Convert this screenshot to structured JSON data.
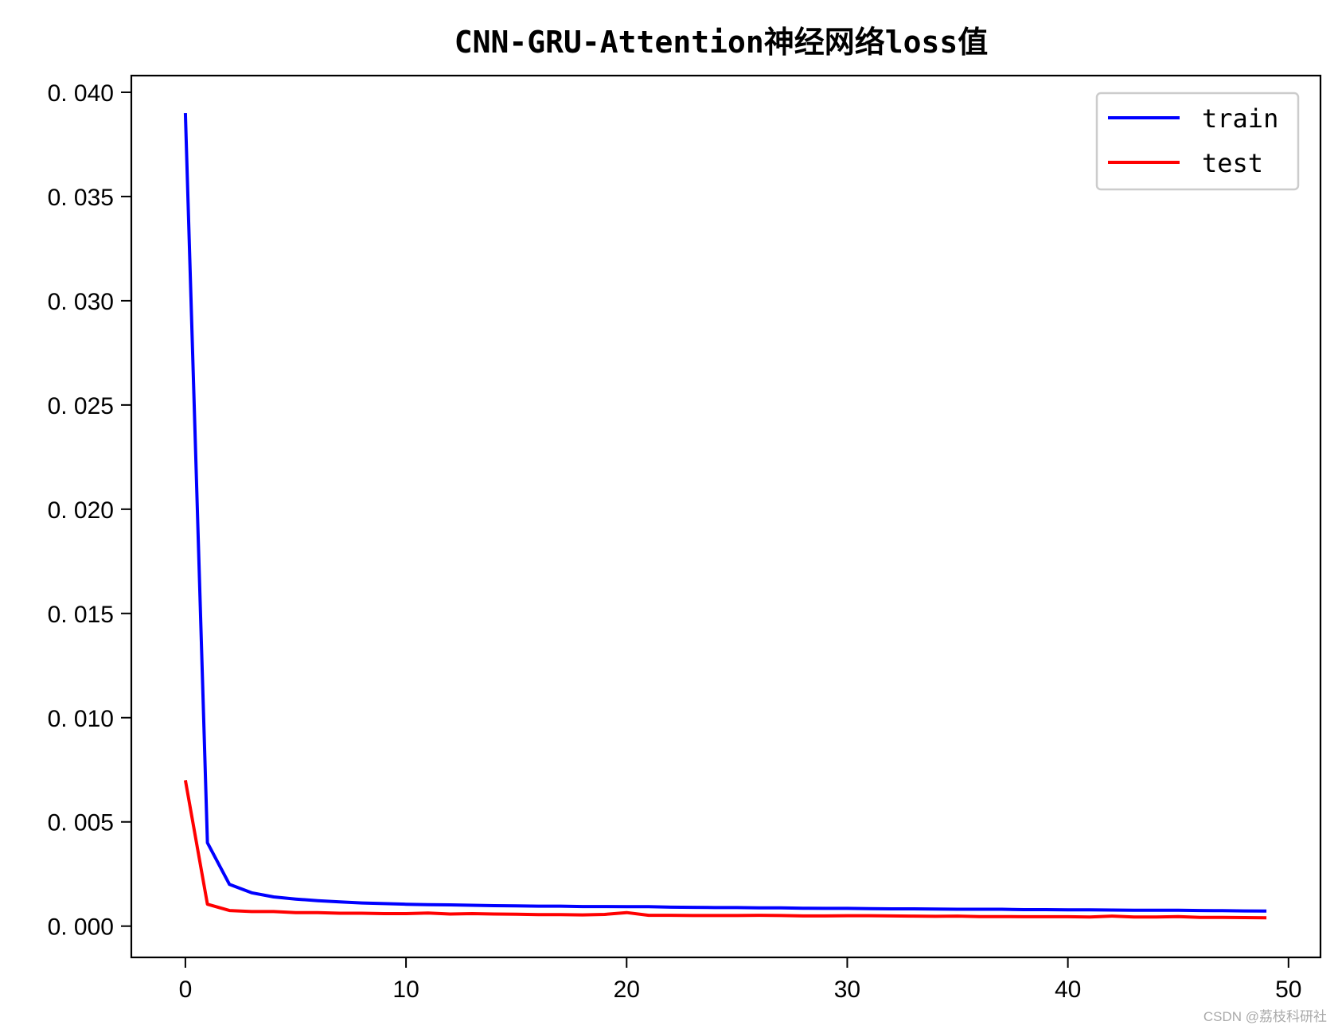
{
  "chart_data": {
    "type": "line",
    "title": "CNN-GRU-Attention神经网络loss值",
    "xlabel": "",
    "ylabel": "",
    "xlim": [
      -2.45,
      51.45
    ],
    "ylim": [
      -0.0015,
      0.0408
    ],
    "xticks": [
      0,
      10,
      20,
      30,
      40,
      50
    ],
    "yticks": [
      0.0,
      0.005,
      0.01,
      0.015,
      0.02,
      0.025,
      0.03,
      0.035,
      0.04
    ],
    "ytick_labels": [
      "0.000",
      "0.005",
      "0.010",
      "0.015",
      "0.020",
      "0.025",
      "0.030",
      "0.035",
      "0.040"
    ],
    "grid": false,
    "legend_position": "top-right",
    "x": [
      0,
      1,
      2,
      3,
      4,
      5,
      6,
      7,
      8,
      9,
      10,
      11,
      12,
      13,
      14,
      15,
      16,
      17,
      18,
      19,
      20,
      21,
      22,
      23,
      24,
      25,
      26,
      27,
      28,
      29,
      30,
      31,
      32,
      33,
      34,
      35,
      36,
      37,
      38,
      39,
      40,
      41,
      42,
      43,
      44,
      45,
      46,
      47,
      48,
      49
    ],
    "series": [
      {
        "name": "train",
        "color": "#0000ff",
        "values": [
          0.039,
          0.004,
          0.002,
          0.0016,
          0.0014,
          0.0013,
          0.00122,
          0.00116,
          0.00111,
          0.00108,
          0.00105,
          0.00103,
          0.00102,
          0.001,
          0.00098,
          0.00097,
          0.00096,
          0.00096,
          0.00094,
          0.00094,
          0.00093,
          0.00093,
          0.00091,
          0.0009,
          0.00089,
          0.00089,
          0.00088,
          0.00088,
          0.00086,
          0.00085,
          0.00085,
          0.00084,
          0.00083,
          0.00083,
          0.00082,
          0.00081,
          0.00081,
          0.00081,
          0.00079,
          0.00079,
          0.00078,
          0.00078,
          0.00077,
          0.00076,
          0.00076,
          0.00076,
          0.00075,
          0.00074,
          0.00073,
          0.00072
        ]
      },
      {
        "name": "test",
        "color": "#ff0000",
        "values": [
          0.007,
          0.00105,
          0.00075,
          0.0007,
          0.0007,
          0.00065,
          0.00065,
          0.00062,
          0.00062,
          0.0006,
          0.0006,
          0.00063,
          0.00058,
          0.0006,
          0.00058,
          0.00057,
          0.00055,
          0.00055,
          0.00054,
          0.00056,
          0.00065,
          0.00052,
          0.00052,
          0.00051,
          0.00051,
          0.00051,
          0.00052,
          0.00051,
          0.00049,
          0.00049,
          0.0005,
          0.0005,
          0.00049,
          0.00048,
          0.00047,
          0.00048,
          0.00046,
          0.00046,
          0.00045,
          0.00045,
          0.00045,
          0.00044,
          0.00048,
          0.00044,
          0.00044,
          0.00046,
          0.00042,
          0.00042,
          0.00041,
          0.0004
        ]
      }
    ]
  },
  "watermark": "CSDN @荔枝科研社"
}
